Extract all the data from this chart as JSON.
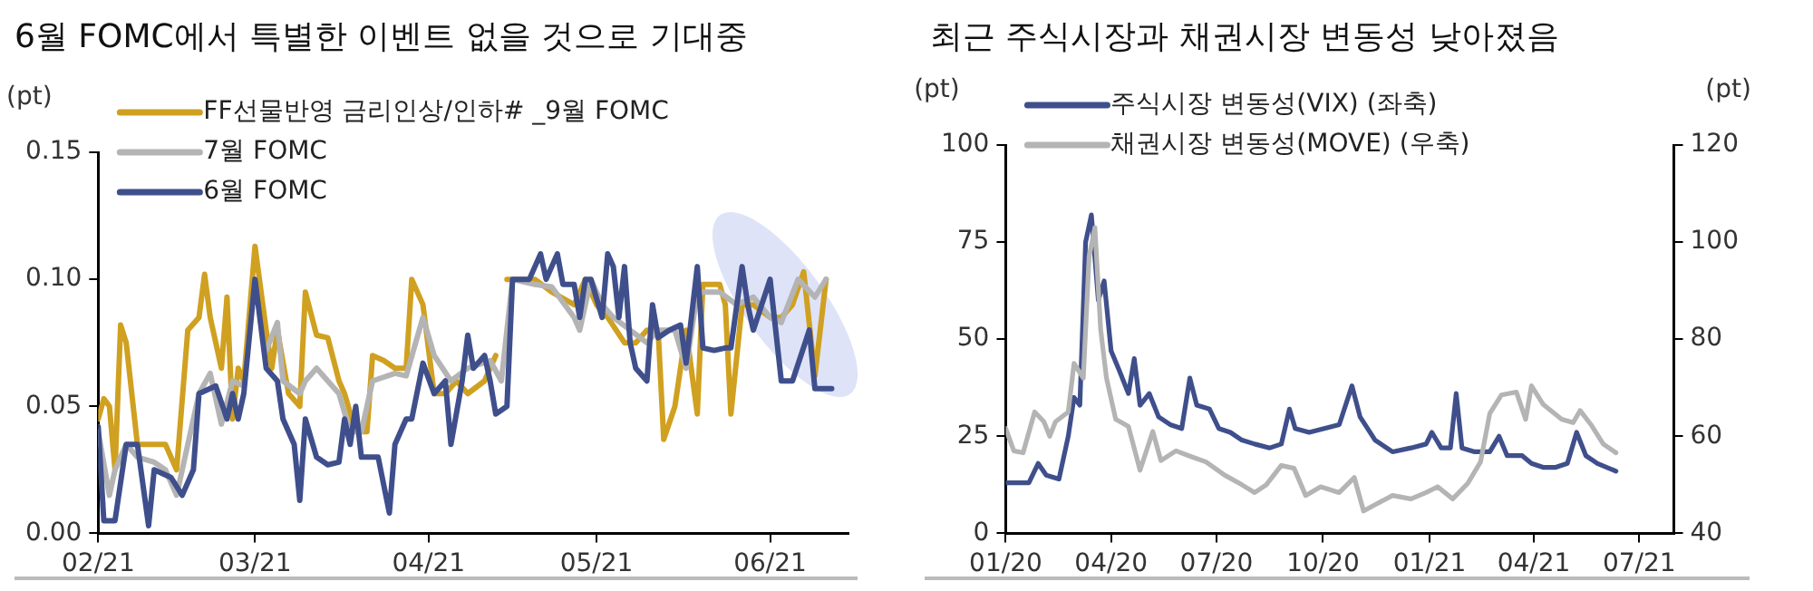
{
  "chart_data": [
    {
      "type": "line",
      "title": "6월 FOMC에서 특별한 이벤트 없을 것으로 기대중",
      "ylabel": "(pt)",
      "xlim": [
        "2021-02-01",
        "2021-06-15"
      ],
      "xticks": [
        {
          "value": "2021-02-01",
          "label": "02/21"
        },
        {
          "value": "2021-03-01",
          "label": "03/21"
        },
        {
          "value": "2021-04-01",
          "label": "04/21"
        },
        {
          "value": "2021-05-01",
          "label": "05/21"
        },
        {
          "value": "2021-06-01",
          "label": "06/21"
        }
      ],
      "ylim": [
        0,
        0.15
      ],
      "yticks": [
        {
          "value": 0,
          "label": "0.00"
        },
        0.05,
        {
          "value": 0.1,
          "label": "0.10"
        },
        0.15
      ],
      "legend": "top left",
      "grid": false,
      "marker": "none",
      "line_style": "solid",
      "series": [
        {
          "name": "FF선물반영 금리인상/인하# _9월 FOMC",
          "color": "#d0a020",
          "x": [
            "2021-02-01",
            "2021-02-02",
            "2021-02-03",
            "2021-02-04",
            "2021-02-05",
            "2021-02-06",
            "2021-02-08",
            "2021-02-09",
            "2021-02-11",
            "2021-02-13",
            "2021-02-15",
            "2021-02-17",
            "2021-02-19",
            "2021-02-20",
            "2021-02-21",
            "2021-02-23",
            "2021-02-24",
            "2021-02-25",
            "2021-02-26",
            "2021-02-27",
            "2021-03-01",
            "2021-03-03",
            "2021-03-04",
            "2021-03-05",
            "2021-03-07",
            "2021-03-09",
            "2021-03-10",
            "2021-03-12",
            "2021-03-14",
            "2021-03-16",
            "2021-03-17",
            "2021-03-19",
            "2021-03-21",
            "2021-03-22",
            "2021-03-24",
            "2021-03-26",
            "2021-03-28",
            "2021-03-29",
            "2021-03-31",
            "2021-04-02",
            "2021-04-04",
            "2021-04-06",
            "2021-04-08",
            "2021-04-11",
            "2021-04-13",
            "2021-04-14",
            "2021-04-15",
            "2021-04-17",
            "2021-04-20",
            "2021-04-23",
            "2021-04-27",
            "2021-04-29",
            "2021-05-01",
            "2021-05-03",
            "2021-05-06",
            "2021-05-08",
            "2021-05-10",
            "2021-05-12",
            "2021-05-13",
            "2021-05-15",
            "2021-05-17",
            "2021-05-19",
            "2021-05-20",
            "2021-05-23",
            "2021-05-24",
            "2021-05-25",
            "2021-05-27",
            "2021-05-29",
            "2021-06-01",
            "2021-06-03",
            "2021-06-05",
            "2021-06-07",
            "2021-06-09",
            "2021-06-11"
          ],
          "values": [
            0.045,
            0.053,
            0.05,
            0.025,
            0.082,
            0.075,
            0.035,
            0.035,
            0.035,
            0.035,
            0.025,
            0.08,
            0.085,
            0.102,
            0.085,
            0.065,
            0.093,
            0.045,
            0.065,
            0.06,
            0.113,
            0.08,
            0.065,
            0.08,
            0.055,
            0.05,
            0.095,
            0.078,
            0.077,
            0.06,
            0.055,
            0.04,
            0.04,
            0.07,
            0.068,
            0.065,
            0.065,
            0.1,
            0.09,
            0.055,
            0.055,
            0.06,
            0.055,
            0.06,
            0.07,
            null,
            0.1,
            0.1,
            0.1,
            0.095,
            0.09,
            0.1,
            0.09,
            0.085,
            0.075,
            0.075,
            0.08,
            0.08,
            0.037,
            0.05,
            0.08,
            0.047,
            0.098,
            0.098,
            0.09,
            0.047,
            0.09,
            0.09,
            0.085,
            0.085,
            0.09,
            0.103,
            0.062,
            0.1
          ]
        },
        {
          "name": "7월 FOMC",
          "color": "#b4b4b4",
          "x": [
            "2021-02-01",
            "2021-02-03",
            "2021-02-04",
            "2021-02-06",
            "2021-02-08",
            "2021-02-11",
            "2021-02-13",
            "2021-02-15",
            "2021-02-17",
            "2021-02-19",
            "2021-02-21",
            "2021-02-23",
            "2021-02-25",
            "2021-02-27",
            "2021-03-01",
            "2021-03-03",
            "2021-03-05",
            "2021-03-06",
            "2021-03-09",
            "2021-03-10",
            "2021-03-12",
            "2021-03-16",
            "2021-03-18",
            "2021-03-20",
            "2021-03-22",
            "2021-03-26",
            "2021-03-28",
            "2021-03-31",
            "2021-04-02",
            "2021-04-05",
            "2021-04-08",
            "2021-04-12",
            "2021-04-14",
            "2021-04-16",
            "2021-04-20",
            "2021-04-23",
            "2021-04-27",
            "2021-04-28",
            "2021-04-30",
            "2021-05-02",
            "2021-05-04",
            "2021-05-07",
            "2021-05-10",
            "2021-05-12",
            "2021-05-15",
            "2021-05-17",
            "2021-05-19",
            "2021-05-23",
            "2021-05-26",
            "2021-05-29",
            "2021-06-01",
            "2021-06-03",
            "2021-06-06",
            "2021-06-09",
            "2021-06-11"
          ],
          "values": [
            0.04,
            0.015,
            0.025,
            0.035,
            0.03,
            0.028,
            0.025,
            0.015,
            0.035,
            0.055,
            0.063,
            0.043,
            0.06,
            0.058,
            null,
            0.072,
            0.083,
            0.06,
            0.055,
            0.06,
            0.065,
            0.055,
            0.04,
            0.04,
            0.06,
            0.063,
            0.062,
            0.085,
            0.07,
            0.06,
            0.065,
            0.068,
            0.06,
            0.1,
            0.098,
            0.097,
            0.085,
            0.08,
            0.1,
            0.09,
            0.085,
            0.08,
            0.075,
            0.08,
            0.08,
            0.065,
            0.095,
            0.095,
            0.09,
            0.093,
            0.085,
            0.083,
            0.1,
            0.093,
            0.1
          ]
        },
        {
          "name": "6월 FOMC",
          "color": "#3f4f8c",
          "x": [
            "2021-02-01",
            "2021-02-02",
            "2021-02-04",
            "2021-02-06",
            "2021-02-08",
            "2021-02-10",
            "2021-02-11",
            "2021-02-14",
            "2021-02-16",
            "2021-02-18",
            "2021-02-19",
            "2021-02-22",
            "2021-02-24",
            "2021-02-25",
            "2021-02-26",
            "2021-02-27",
            "2021-03-01",
            "2021-03-03",
            "2021-03-05",
            "2021-03-06",
            "2021-03-08",
            "2021-03-09",
            "2021-03-10",
            "2021-03-12",
            "2021-03-14",
            "2021-03-16",
            "2021-03-17",
            "2021-03-18",
            "2021-03-19",
            "2021-03-20",
            "2021-03-23",
            "2021-03-25",
            "2021-03-26",
            "2021-03-28",
            "2021-03-29",
            "2021-03-31",
            "2021-04-02",
            "2021-04-04",
            "2021-04-05",
            "2021-04-07",
            "2021-04-08",
            "2021-04-09",
            "2021-04-11",
            "2021-04-12",
            "2021-04-13",
            "2021-04-15",
            "2021-04-16",
            "2021-04-17",
            "2021-04-19",
            "2021-04-21",
            "2021-04-22",
            "2021-04-24",
            "2021-04-25",
            "2021-04-27",
            "2021-04-28",
            "2021-04-29",
            "2021-04-30",
            "2021-05-02",
            "2021-05-03",
            "2021-05-04",
            "2021-05-05",
            "2021-05-06",
            "2021-05-07",
            "2021-05-08",
            "2021-05-10",
            "2021-05-11",
            "2021-05-12",
            "2021-05-14",
            "2021-05-16",
            "2021-05-17",
            "2021-05-19",
            "2021-05-20",
            "2021-05-22",
            "2021-05-24",
            "2021-05-25",
            "2021-05-27",
            "2021-05-28",
            "2021-05-29",
            "2021-06-01",
            "2021-06-02",
            "2021-06-03",
            "2021-06-05",
            "2021-06-08",
            "2021-06-09",
            "2021-06-12"
          ],
          "values": [
            0.042,
            0.005,
            0.005,
            0.035,
            0.035,
            0.003,
            0.025,
            0.022,
            0.015,
            0.025,
            0.055,
            0.058,
            0.045,
            0.055,
            0.045,
            0.055,
            0.1,
            0.065,
            0.06,
            0.045,
            0.035,
            0.013,
            0.045,
            0.03,
            0.027,
            0.028,
            0.045,
            0.035,
            0.05,
            0.03,
            0.03,
            0.008,
            0.035,
            0.045,
            0.045,
            0.067,
            0.055,
            0.06,
            0.035,
            0.06,
            0.078,
            0.065,
            0.07,
            0.06,
            0.047,
            0.05,
            0.1,
            0.1,
            0.1,
            0.11,
            0.1,
            0.11,
            0.098,
            0.098,
            0.085,
            0.1,
            0.1,
            0.085,
            0.11,
            0.105,
            0.085,
            0.105,
            0.075,
            0.065,
            0.06,
            0.09,
            0.077,
            0.08,
            0.082,
            0.067,
            0.105,
            0.073,
            0.072,
            0.073,
            0.073,
            0.105,
            0.09,
            0.08,
            0.1,
            0.08,
            0.06,
            0.06,
            0.08,
            0.057,
            0.057
          ]
        }
      ]
    },
    {
      "type": "line",
      "title": "최근 주식시장과 채권시장 변동성 낮아졌음",
      "ylabel": "(pt)",
      "y2label": "(pt)",
      "xlim": [
        "2020-01-01",
        "2021-07-31"
      ],
      "xticks": [
        {
          "value": "2020-01-01",
          "label": "01/20"
        },
        {
          "value": "2020-04-01",
          "label": "04/20"
        },
        {
          "value": "2020-07-01",
          "label": "07/20"
        },
        {
          "value": "2020-10-01",
          "label": "10/20"
        },
        {
          "value": "2021-01-01",
          "label": "01/21"
        },
        {
          "value": "2021-04-01",
          "label": "04/21"
        },
        {
          "value": "2021-07-01",
          "label": "07/21"
        }
      ],
      "ylim": [
        0,
        100
      ],
      "yticks": [
        0,
        25,
        50,
        75,
        100
      ],
      "y2lim": [
        40,
        120
      ],
      "y2ticks": [
        40,
        60,
        80,
        100,
        120
      ],
      "legend": "top left",
      "grid": false,
      "marker": "none",
      "line_style": "solid",
      "series": [
        {
          "name": "주식시장 변동성(VIX) (좌축)",
          "color": "#3f4f8c",
          "axis": "y",
          "x": [
            "2020-01-01",
            "2020-01-21",
            "2020-01-29",
            "2020-02-05",
            "2020-02-16",
            "2020-02-24",
            "2020-02-29",
            "2020-03-05",
            "2020-03-10",
            "2020-03-15",
            "2020-03-21",
            "2020-03-26",
            "2020-04-01",
            "2020-04-08",
            "2020-04-16",
            "2020-04-21",
            "2020-04-26",
            "2020-05-04",
            "2020-05-12",
            "2020-05-22",
            "2020-06-01",
            "2020-06-08",
            "2020-06-14",
            "2020-06-25",
            "2020-07-03",
            "2020-07-13",
            "2020-07-23",
            "2020-08-03",
            "2020-08-16",
            "2020-08-26",
            "2020-09-02",
            "2020-09-07",
            "2020-09-19",
            "2020-10-02",
            "2020-10-15",
            "2020-10-26",
            "2020-11-02",
            "2020-11-15",
            "2020-11-30",
            "2020-12-16",
            "2020-12-29",
            "2021-01-03",
            "2021-01-11",
            "2021-01-19",
            "2021-01-24",
            "2021-01-29",
            "2021-02-09",
            "2021-02-22",
            "2021-03-02",
            "2021-03-09",
            "2021-03-22",
            "2021-03-30",
            "2021-04-09",
            "2021-04-20",
            "2021-04-30",
            "2021-05-08",
            "2021-05-16",
            "2021-05-26",
            "2021-06-11"
          ],
          "values": [
            13,
            13,
            18,
            15,
            14,
            25,
            35,
            33,
            75,
            82,
            60,
            65,
            47,
            42,
            36,
            45,
            33,
            36,
            30,
            28,
            27,
            40,
            33,
            32,
            27,
            26,
            24,
            23,
            22,
            23,
            32,
            27,
            26,
            27,
            28,
            38,
            30,
            24,
            21,
            22,
            23,
            26,
            22,
            22,
            36,
            22,
            21,
            21,
            25,
            20,
            20,
            18,
            17,
            17,
            18,
            26,
            20,
            18,
            16
          ]
        },
        {
          "name": "채권시장 변동성(MOVE) (우축)",
          "color": "#b4b4b4",
          "axis": "y2",
          "x": [
            "2020-01-01",
            "2020-01-08",
            "2020-01-16",
            "2020-01-26",
            "2020-02-03",
            "2020-02-08",
            "2020-02-13",
            "2020-02-24",
            "2020-02-29",
            "2020-03-08",
            "2020-03-13",
            "2020-03-18",
            "2020-03-23",
            "2020-03-28",
            "2020-04-05",
            "2020-04-16",
            "2020-04-26",
            "2020-05-07",
            "2020-05-14",
            "2020-05-27",
            "2020-06-07",
            "2020-06-22",
            "2020-07-08",
            "2020-07-23",
            "2020-08-03",
            "2020-08-13",
            "2020-08-26",
            "2020-09-06",
            "2020-09-16",
            "2020-09-29",
            "2020-10-15",
            "2020-10-28",
            "2020-11-05",
            "2020-11-15",
            "2020-11-30",
            "2020-12-16",
            "2020-12-29",
            "2021-01-08",
            "2021-01-21",
            "2021-02-03",
            "2021-02-14",
            "2021-02-22",
            "2021-03-04",
            "2021-03-17",
            "2021-03-25",
            "2021-03-30",
            "2021-04-09",
            "2021-04-25",
            "2021-05-05",
            "2021-05-11",
            "2021-05-21",
            "2021-05-31",
            "2021-06-11"
          ],
          "values": [
            61.6,
            57,
            56.6,
            65,
            63,
            60,
            63,
            65,
            75,
            72,
            97,
            103,
            82,
            72,
            63.5,
            62,
            53,
            61,
            55,
            57,
            56,
            54.7,
            52,
            50,
            48.4,
            50,
            54,
            53.4,
            47.8,
            49.6,
            48.4,
            51.5,
            44.6,
            45.9,
            47.8,
            47.1,
            48.4,
            49.6,
            47.1,
            50.3,
            54.7,
            64.7,
            68.5,
            69.1,
            63.5,
            70.4,
            66.6,
            63.5,
            62.8,
            65.3,
            62.2,
            58.4,
            56.6
          ]
        }
      ]
    }
  ]
}
